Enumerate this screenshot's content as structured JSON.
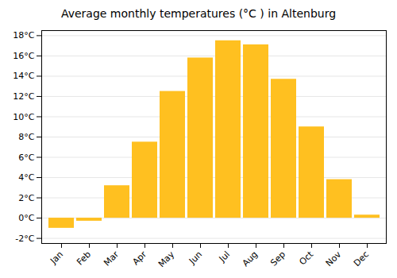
{
  "chart_data": {
    "type": "bar",
    "title": "Average monthly temperatures (°C ) in Altenburg",
    "categories": [
      "Jan",
      "Feb",
      "Mar",
      "Apr",
      "May",
      "Jun",
      "Jul",
      "Aug",
      "Sep",
      "Oct",
      "Nov",
      "Dec"
    ],
    "values": [
      -1.0,
      -0.3,
      3.2,
      7.5,
      12.5,
      15.8,
      17.5,
      17.1,
      13.7,
      9.0,
      3.8,
      0.3
    ],
    "color": "#FFC020",
    "ylim": [
      -2.5,
      18.5
    ],
    "yticks": [
      {
        "value": -2,
        "label": "-2°C"
      },
      {
        "value": 0,
        "label": "0°C"
      },
      {
        "value": 2,
        "label": "2°C"
      },
      {
        "value": 4,
        "label": "4°C"
      },
      {
        "value": 6,
        "label": "6°C"
      },
      {
        "value": 8,
        "label": "8°C"
      },
      {
        "value": 10,
        "label": "10°C"
      },
      {
        "value": 12,
        "label": "12°C"
      },
      {
        "value": 14,
        "label": "14°C"
      },
      {
        "value": 16,
        "label": "16°C"
      },
      {
        "value": 18,
        "label": "18°C"
      }
    ],
    "grid": true
  }
}
